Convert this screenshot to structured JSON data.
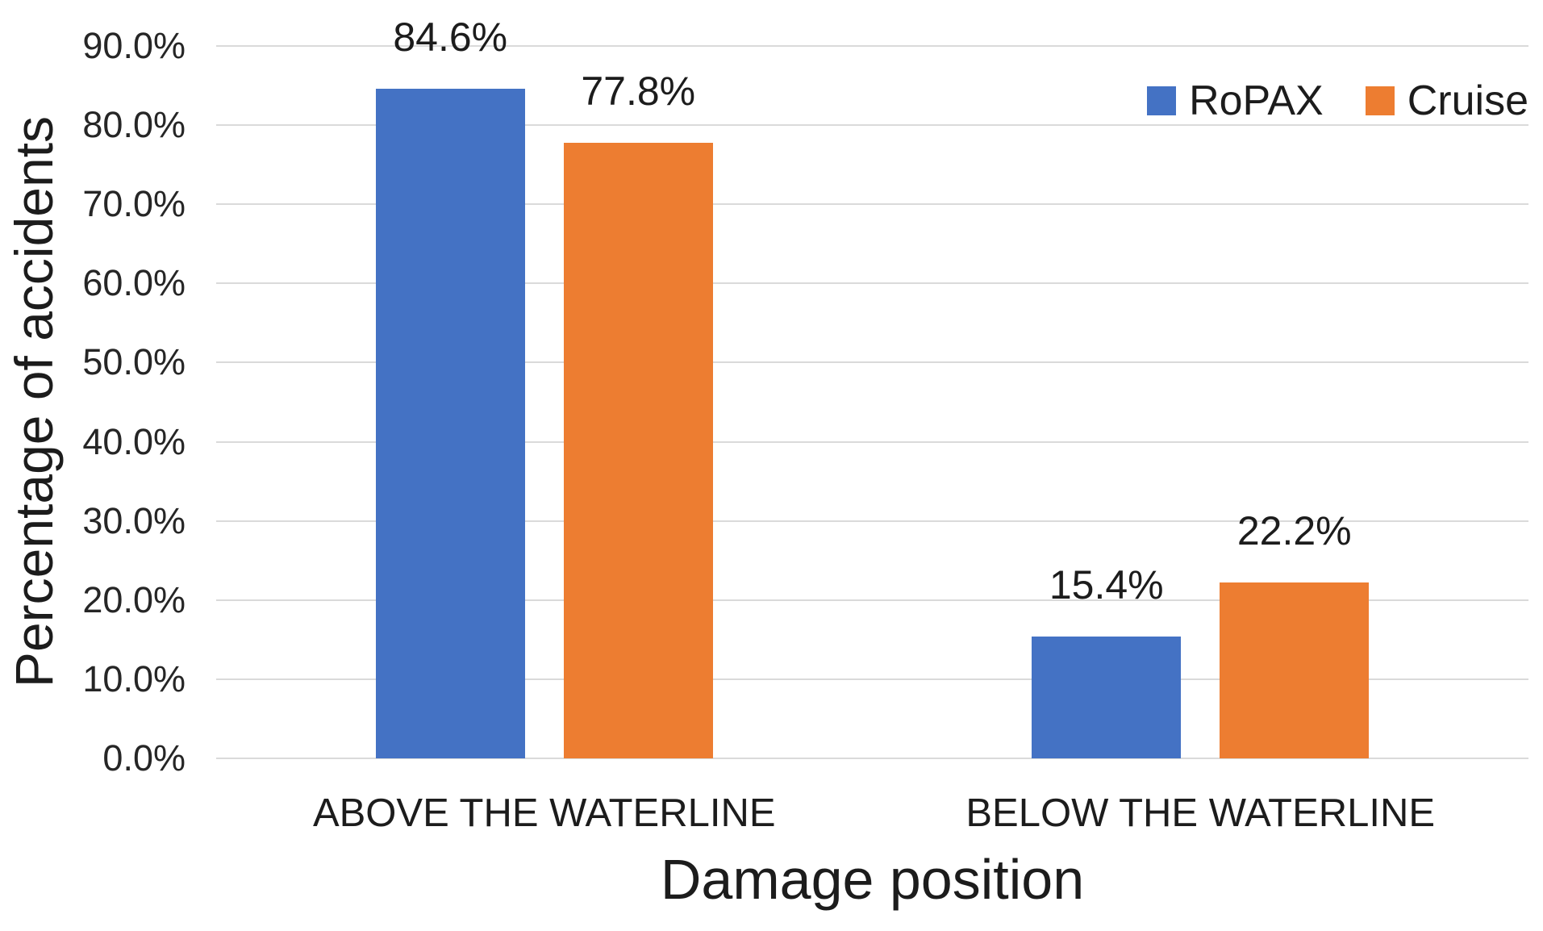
{
  "chart_data": {
    "type": "bar",
    "title": "",
    "categories": [
      "ABOVE THE WATERLINE",
      "BELOW THE WATERLINE"
    ],
    "series": [
      {
        "name": "RoPAX",
        "color": "#4472C4",
        "values": [
          84.6,
          15.4
        ],
        "labels": [
          "84.6%",
          "15.4%"
        ]
      },
      {
        "name": "Cruise",
        "color": "#ED7D31",
        "values": [
          77.8,
          22.2
        ],
        "labels": [
          "77.8%",
          "22.2%"
        ]
      }
    ],
    "xlabel": "Damage position",
    "ylabel": "Percentage of accidents",
    "ylim": [
      0,
      90
    ],
    "ytick_step": 10,
    "ytick_labels": [
      "0.0%",
      "10.0%",
      "20.0%",
      "30.0%",
      "40.0%",
      "50.0%",
      "60.0%",
      "70.0%",
      "80.0%",
      "90.0%"
    ],
    "grid": "horizontal",
    "gridline_color": "#dadada",
    "legend_position": "top-right",
    "text_color": "#262626"
  }
}
